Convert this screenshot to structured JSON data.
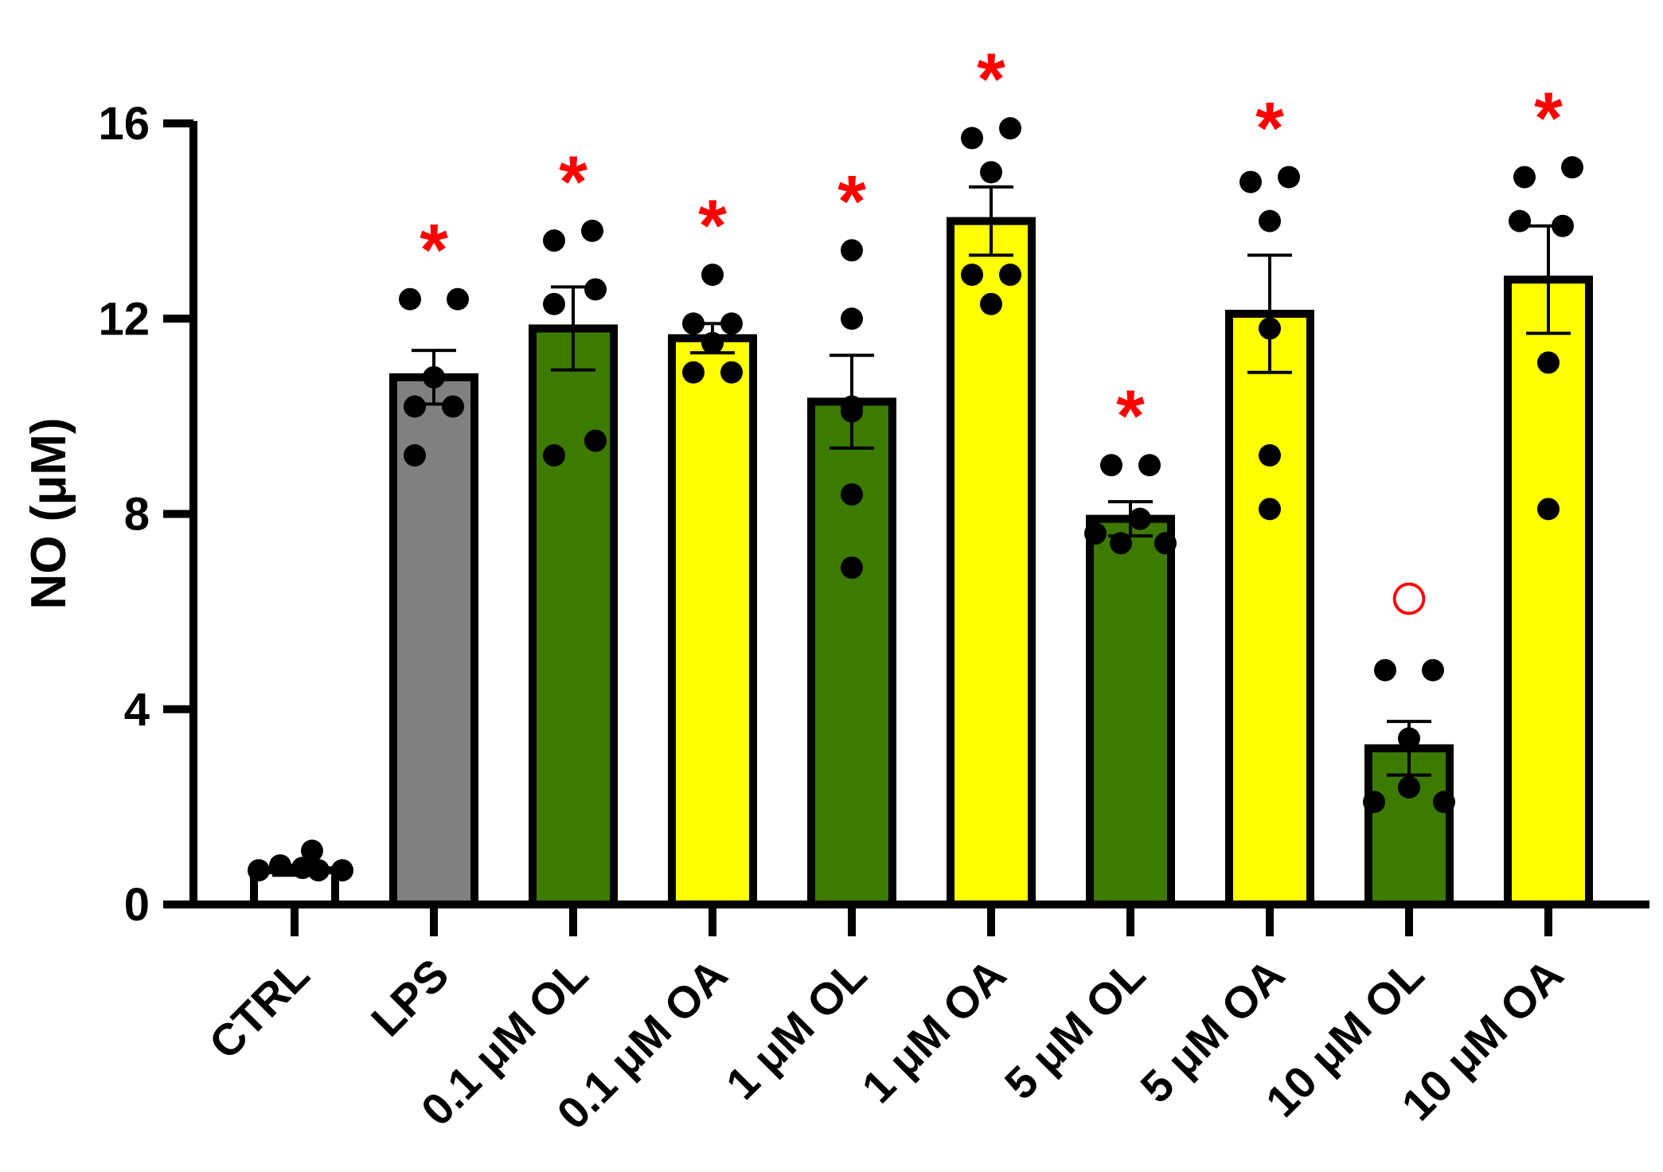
{
  "chart_data": {
    "type": "bar",
    "title": "",
    "xlabel": "",
    "ylabel": "NO (μM)",
    "ylim": [
      0,
      16
    ],
    "yticks": [
      0,
      4,
      8,
      12,
      16
    ],
    "ytick_labels": [
      "0",
      "4",
      "8",
      "12",
      "16"
    ],
    "grid": false,
    "legend": "none",
    "categories": [
      "CTRL",
      "LPS",
      "0.1 μM OL",
      "0.1 μM OA",
      "1 μM OL",
      "1 μM OA",
      "5 μM OL",
      "5 μM OA",
      "10 μM OL",
      "10 μM OA"
    ],
    "values": [
      0.7,
      10.8,
      11.8,
      11.6,
      10.3,
      14.0,
      7.9,
      12.1,
      3.2,
      12.8
    ],
    "sem": [
      0.1,
      0.55,
      0.85,
      0.3,
      0.95,
      0.7,
      0.35,
      1.2,
      0.55,
      1.1
    ],
    "points": [
      [
        0.7,
        0.8,
        0.75,
        0.7,
        1.1,
        0.7
      ],
      [
        12.4,
        12.4,
        10.8,
        10.2,
        10.2,
        9.2
      ],
      [
        13.6,
        13.8,
        12.6,
        12.3,
        9.5,
        9.2
      ],
      [
        12.9,
        11.9,
        11.9,
        11.5,
        10.9,
        10.9
      ],
      [
        13.4,
        12.0,
        10.2,
        8.4,
        6.9,
        10.1
      ],
      [
        15.7,
        15.9,
        15.0,
        12.9,
        12.9,
        12.3
      ],
      [
        9.0,
        9.0,
        7.9,
        7.6,
        7.4,
        7.4
      ],
      [
        14.8,
        14.9,
        14.0,
        11.8,
        9.2,
        8.1
      ],
      [
        4.8,
        4.8,
        3.4,
        2.4,
        2.1,
        2.1
      ],
      [
        14.9,
        15.1,
        13.9,
        14.0,
        11.1,
        8.1
      ]
    ],
    "colors": [
      "#ffffff",
      "#808080",
      "#3d7a00",
      "#ffff00",
      "#3d7a00",
      "#ffff00",
      "#3d7a00",
      "#ffff00",
      "#3d7a00",
      "#ffff00"
    ],
    "significance": [
      "",
      "*",
      "*",
      "*",
      "*",
      "*",
      "*",
      "*",
      "○",
      "*"
    ],
    "significance_color": "#ff0000"
  }
}
